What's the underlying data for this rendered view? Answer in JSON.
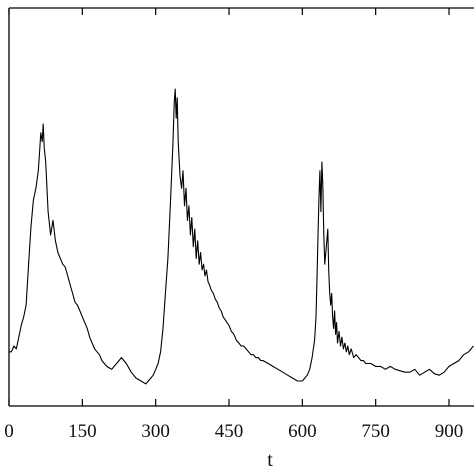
{
  "chart_data": {
    "type": "line",
    "xlabel": "t",
    "ylabel": "",
    "title": "",
    "xlim": [
      0,
      950
    ],
    "ylim": [
      0,
      1
    ],
    "x_ticks": [
      0,
      150,
      300,
      450,
      600,
      750,
      900
    ],
    "x_tick_labels": [
      "0",
      "150",
      "300",
      "450",
      "600",
      "750",
      "900"
    ],
    "grid": false,
    "series": [
      {
        "x": [
          0,
          5,
          10,
          15,
          20,
          25,
          30,
          35,
          40,
          45,
          50,
          55,
          60,
          62,
          65,
          68,
          70,
          72,
          75,
          80,
          85,
          90,
          95,
          100,
          105,
          110,
          115,
          120,
          125,
          130,
          135,
          140,
          145,
          150,
          155,
          160,
          165,
          170,
          175,
          180,
          185,
          190,
          195,
          200,
          205,
          210,
          215,
          220,
          225,
          230,
          240,
          250,
          260,
          270,
          280,
          285,
          290,
          295,
          300,
          305,
          310,
          315,
          320,
          325,
          330,
          335,
          338,
          340,
          342,
          344,
          346,
          348,
          350,
          353,
          356,
          359,
          362,
          365,
          368,
          371,
          374,
          377,
          380,
          383,
          386,
          389,
          392,
          395,
          398,
          401,
          404,
          407,
          410,
          414,
          418,
          422,
          426,
          430,
          434,
          438,
          442,
          446,
          450,
          455,
          460,
          465,
          470,
          475,
          480,
          485,
          490,
          495,
          500,
          505,
          510,
          515,
          520,
          530,
          540,
          550,
          560,
          570,
          580,
          590,
          600,
          605,
          610,
          615,
          620,
          625,
          628,
          630,
          632,
          634,
          636,
          638,
          640,
          642,
          644,
          646,
          648,
          650,
          652,
          654,
          656,
          658,
          660,
          662,
          664,
          666,
          668,
          670,
          672,
          675,
          678,
          681,
          684,
          687,
          690,
          693,
          696,
          700,
          705,
          710,
          715,
          720,
          725,
          730,
          740,
          750,
          760,
          770,
          780,
          790,
          800,
          810,
          820,
          830,
          840,
          850,
          860,
          870,
          880,
          890,
          900,
          910,
          920,
          930,
          940,
          950
        ],
        "y": [
          0.1,
          0.1,
          0.12,
          0.11,
          0.15,
          0.19,
          0.22,
          0.26,
          0.4,
          0.53,
          0.62,
          0.66,
          0.72,
          0.77,
          0.85,
          0.82,
          0.88,
          0.8,
          0.75,
          0.58,
          0.5,
          0.55,
          0.48,
          0.44,
          0.42,
          0.4,
          0.39,
          0.36,
          0.33,
          0.3,
          0.27,
          0.26,
          0.24,
          0.22,
          0.2,
          0.18,
          0.15,
          0.13,
          0.11,
          0.1,
          0.09,
          0.07,
          0.06,
          0.05,
          0.045,
          0.04,
          0.05,
          0.06,
          0.07,
          0.08,
          0.06,
          0.03,
          0.01,
          0.0,
          -0.01,
          0.0,
          0.01,
          0.02,
          0.04,
          0.06,
          0.1,
          0.18,
          0.3,
          0.42,
          0.6,
          0.8,
          0.95,
          1.0,
          0.9,
          0.97,
          0.82,
          0.76,
          0.7,
          0.66,
          0.72,
          0.6,
          0.66,
          0.55,
          0.6,
          0.5,
          0.56,
          0.46,
          0.52,
          0.42,
          0.48,
          0.4,
          0.44,
          0.38,
          0.4,
          0.36,
          0.38,
          0.34,
          0.33,
          0.31,
          0.3,
          0.28,
          0.27,
          0.25,
          0.24,
          0.22,
          0.21,
          0.2,
          0.19,
          0.17,
          0.16,
          0.14,
          0.13,
          0.12,
          0.12,
          0.11,
          0.1,
          0.09,
          0.09,
          0.08,
          0.08,
          0.07,
          0.07,
          0.06,
          0.05,
          0.04,
          0.03,
          0.02,
          0.01,
          0.0,
          0.0,
          0.01,
          0.02,
          0.04,
          0.08,
          0.14,
          0.22,
          0.35,
          0.5,
          0.63,
          0.72,
          0.58,
          0.75,
          0.66,
          0.5,
          0.4,
          0.44,
          0.48,
          0.52,
          0.38,
          0.3,
          0.26,
          0.3,
          0.22,
          0.18,
          0.24,
          0.16,
          0.2,
          0.13,
          0.17,
          0.12,
          0.15,
          0.11,
          0.13,
          0.1,
          0.12,
          0.09,
          0.11,
          0.08,
          0.09,
          0.08,
          0.07,
          0.07,
          0.06,
          0.06,
          0.05,
          0.05,
          0.04,
          0.05,
          0.04,
          0.035,
          0.03,
          0.03,
          0.04,
          0.02,
          0.03,
          0.04,
          0.025,
          0.02,
          0.03,
          0.05,
          0.06,
          0.07,
          0.09,
          0.1,
          0.12
        ]
      }
    ]
  }
}
